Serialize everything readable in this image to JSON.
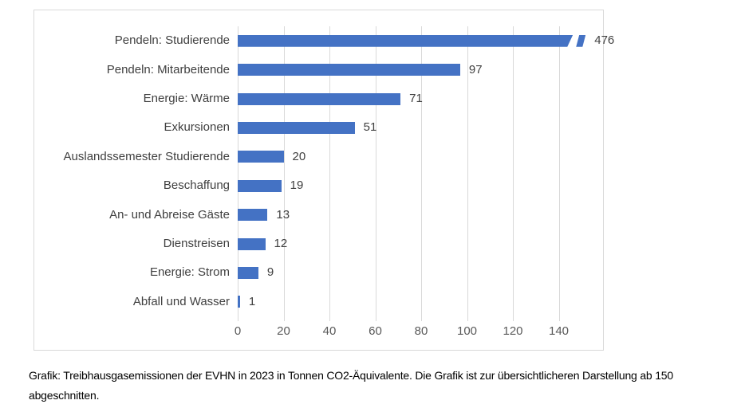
{
  "chart_data": {
    "type": "bar",
    "orientation": "horizontal",
    "title": "",
    "xlabel": "",
    "ylabel": "",
    "categories": [
      "Pendeln: Studierende",
      "Pendeln: Mitarbeitende",
      "Energie: Wärme",
      "Exkursionen",
      "Auslandssemester Studierende",
      "Beschaffung",
      "An- und Abreise Gäste",
      "Dienstreisen",
      "Energie: Strom",
      "Abfall und Wasser"
    ],
    "values": [
      476,
      97,
      71,
      51,
      20,
      19,
      13,
      12,
      9,
      1
    ],
    "value_labels": [
      "476",
      "97",
      "71",
      "51",
      "20",
      "19",
      "13",
      "12",
      "9",
      "1"
    ],
    "x_ticks": [
      "0",
      "20",
      "40",
      "60",
      "80",
      "100",
      "120",
      "140"
    ],
    "x_tick_values": [
      0,
      20,
      40,
      60,
      80,
      100,
      120,
      140
    ],
    "xlim": [
      0,
      160
    ],
    "truncated_at": 150,
    "grid": true,
    "legend": "none",
    "bar_color": "#4472c4",
    "gridline_color": "#d9d9d9",
    "axis_label_color": "#595959",
    "data_label_color": "#404040"
  },
  "caption": "Grafik: Treibhausgasemissionen der EVHN in 2023 in Tonnen CO2-Äquivalente. Die Grafik ist zur übersichtlicheren Darstellung ab 150 abgeschnitten."
}
